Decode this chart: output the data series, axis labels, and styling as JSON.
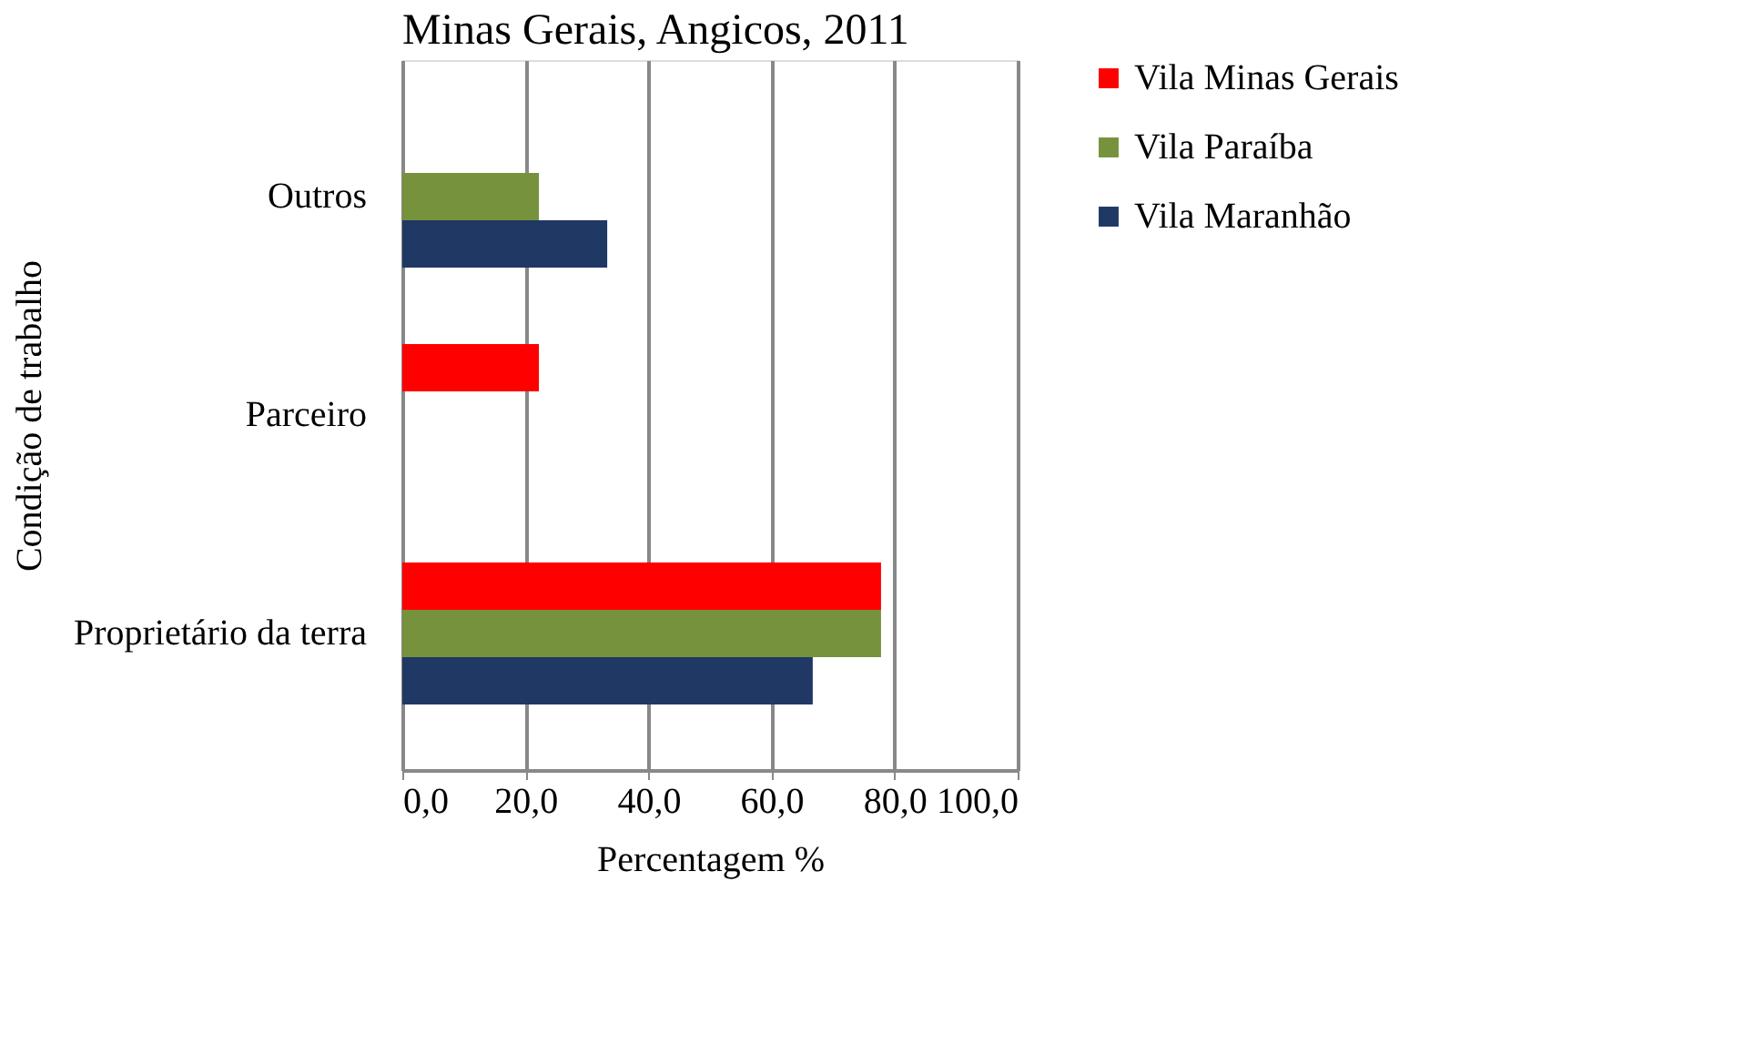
{
  "chart_data": {
    "type": "bar",
    "orientation": "horizontal",
    "title": "Minas Gerais, Angicos, 2011",
    "xlabel": "Percentagem %",
    "ylabel": "Condição de trabalho",
    "categories": [
      "Outros",
      "Parceiro",
      "Proprietário da terra"
    ],
    "series": [
      {
        "name": "Vila Minas Gerais",
        "color": "#ff0000",
        "values": [
          null,
          22.2,
          77.8
        ]
      },
      {
        "name": "Vila Paraíba",
        "color": "#76923c",
        "values": [
          22.2,
          null,
          77.8
        ]
      },
      {
        "name": "Vila Maranhão",
        "color": "#1f3864",
        "values": [
          33.3,
          null,
          66.7
        ]
      }
    ],
    "xlim": [
      0,
      100
    ],
    "xticks": [
      {
        "value": 0,
        "label": "0,0"
      },
      {
        "value": 20,
        "label": "20,0"
      },
      {
        "value": 40,
        "label": "40,0"
      },
      {
        "value": 60,
        "label": "60,0"
      },
      {
        "value": 80,
        "label": "80,0"
      },
      {
        "value": 100,
        "label": "100,0"
      }
    ],
    "grid": "x",
    "legend": "right"
  }
}
